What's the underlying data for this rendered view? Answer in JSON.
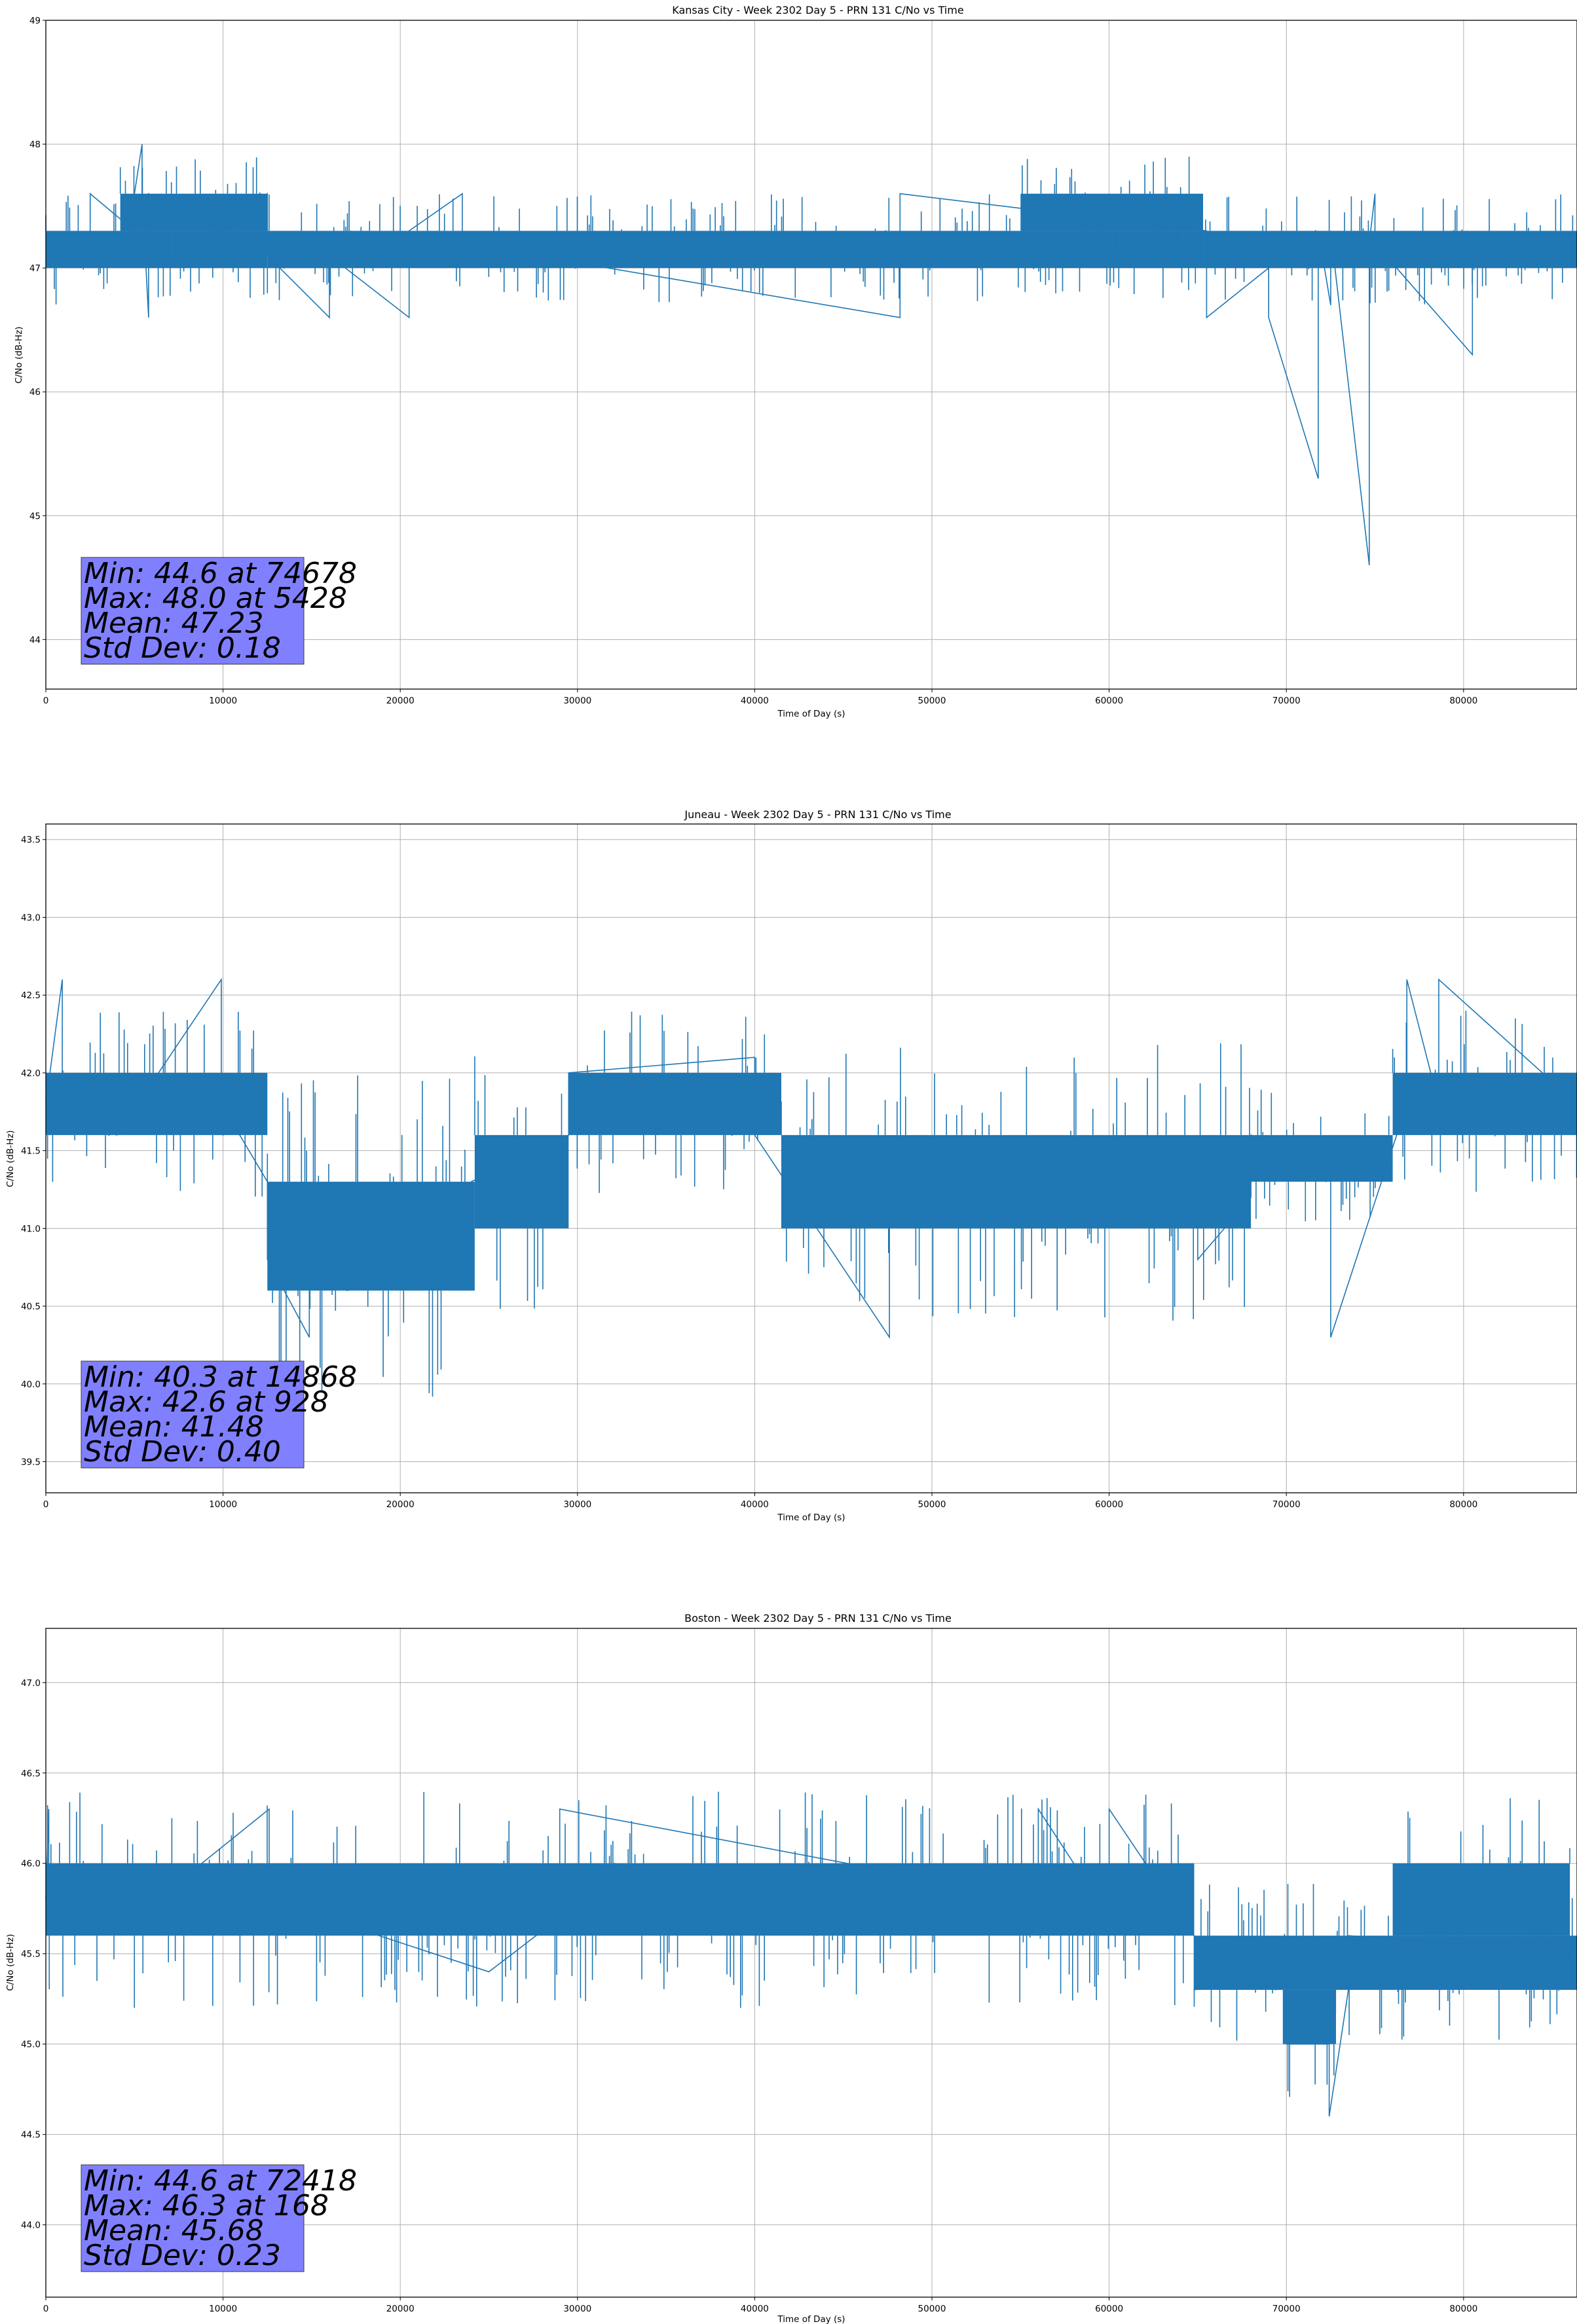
{
  "chart_data": [
    {
      "type": "line",
      "title": "Kansas City - Week 2302 Day 5 - PRN 131 C/No vs Time",
      "xlabel": "Time of Day (s)",
      "ylabel": "C/No (dB-Hz)",
      "xlim": [
        0,
        86400
      ],
      "ylim": [
        43.6,
        49.0
      ],
      "xticks": [
        0,
        10000,
        20000,
        30000,
        40000,
        50000,
        60000,
        70000,
        80000
      ],
      "yticks": [
        44,
        45,
        46,
        47,
        48,
        49
      ],
      "ytick_labels": [
        "44",
        "45",
        "46",
        "47",
        "48",
        "49"
      ],
      "grid": true,
      "series_color": "#1f77b4",
      "series": [
        {
          "x": [
            0,
            2500,
            2500,
            5000,
            5000,
            5428,
            5428,
            5800,
            5800,
            10000,
            12500,
            12500,
            16000,
            16000,
            20500,
            20500,
            23500,
            23500,
            48200,
            48200,
            65500,
            65500,
            69000,
            69000,
            71800,
            71800,
            72500,
            72500,
            74678,
            74678,
            75000,
            75000,
            80500,
            80500,
            86400
          ],
          "y": [
            47.0,
            47.3,
            47.6,
            47.3,
            47.6,
            48.0,
            47.6,
            46.6,
            47.6,
            47.3,
            47.6,
            47.1,
            46.6,
            47.1,
            46.6,
            47.3,
            47.6,
            47.2,
            46.6,
            47.6,
            47.3,
            46.6,
            47.0,
            46.6,
            45.3,
            47.3,
            46.7,
            47.3,
            44.6,
            47.2,
            47.6,
            47.2,
            46.3,
            47.2,
            47.1
          ]
        }
      ],
      "bands": [
        {
          "x0": 0,
          "x1": 12500,
          "lo": 47.0,
          "hi": 47.3
        },
        {
          "x0": 4200,
          "x1": 12500,
          "lo": 47.3,
          "hi": 47.6
        },
        {
          "x0": 12500,
          "x1": 65500,
          "lo": 47.0,
          "hi": 47.3
        },
        {
          "x0": 65500,
          "x1": 86400,
          "lo": 47.0,
          "hi": 47.3
        },
        {
          "x0": 55000,
          "x1": 65300,
          "lo": 47.3,
          "hi": 47.6
        }
      ],
      "stats": {
        "min": "Min: 44.6 at 74678",
        "max": "Max: 48.0 at 5428",
        "mean": "Mean: 47.23",
        "std": "Std Dev: 0.18"
      }
    },
    {
      "type": "line",
      "title": "Juneau - Week 2302 Day 5 - PRN 131 C/No vs Time",
      "xlabel": "Time of Day (s)",
      "ylabel": "C/No (dB-Hz)",
      "xlim": [
        0,
        86400
      ],
      "ylim": [
        39.3,
        43.6
      ],
      "xticks": [
        0,
        10000,
        20000,
        30000,
        40000,
        50000,
        60000,
        70000,
        80000
      ],
      "yticks": [
        39.5,
        40.0,
        40.5,
        41.0,
        41.5,
        42.0,
        42.5,
        43.0,
        43.5
      ],
      "ytick_labels": [
        "39.5",
        "40.0",
        "40.5",
        "41.0",
        "41.5",
        "42.0",
        "42.5",
        "43.0",
        "43.5"
      ],
      "grid": true,
      "series_color": "#1f77b4",
      "series": [
        {
          "x": [
            0,
            928,
            928,
            4000,
            9900,
            9900,
            12500,
            12500,
            14868,
            14868,
            17000,
            24000,
            24000,
            29500,
            29500,
            40000,
            40000,
            47600,
            47600,
            55000,
            58000,
            65000,
            65000,
            68000,
            68000,
            72500,
            72500,
            76800,
            76800,
            78600,
            78600,
            86400
          ],
          "y": [
            41.8,
            42.6,
            41.8,
            41.6,
            42.6,
            41.8,
            41.3,
            40.8,
            40.3,
            40.8,
            40.6,
            40.8,
            41.3,
            41.6,
            42.0,
            42.1,
            41.6,
            40.3,
            41.3,
            41.4,
            41.2,
            41.1,
            40.8,
            41.2,
            41.6,
            41.4,
            40.3,
            41.8,
            42.6,
            41.8,
            42.6,
            41.8
          ]
        }
      ],
      "bands": [
        {
          "x0": 0,
          "x1": 12500,
          "lo": 41.6,
          "hi": 42.0
        },
        {
          "x0": 12500,
          "x1": 24200,
          "lo": 40.6,
          "hi": 41.3
        },
        {
          "x0": 24200,
          "x1": 29500,
          "lo": 41.0,
          "hi": 41.6
        },
        {
          "x0": 29500,
          "x1": 41500,
          "lo": 41.6,
          "hi": 42.0
        },
        {
          "x0": 41500,
          "x1": 68000,
          "lo": 41.0,
          "hi": 41.6
        },
        {
          "x0": 68000,
          "x1": 76000,
          "lo": 41.3,
          "hi": 41.6
        },
        {
          "x0": 76000,
          "x1": 86400,
          "lo": 41.6,
          "hi": 42.0
        }
      ],
      "stats": {
        "min": "Min: 40.3 at 14868",
        "max": "Max: 42.6 at 928",
        "mean": "Mean: 41.48",
        "std": "Std Dev: 0.40"
      }
    },
    {
      "type": "line",
      "title": "Boston - Week 2302 Day 5 - PRN 131 C/No vs Time",
      "xlabel": "Time of Day (s)",
      "ylabel": "C/No (dB-Hz)",
      "xlim": [
        0,
        86400
      ],
      "ylim": [
        43.6,
        47.3
      ],
      "xticks": [
        0,
        10000,
        20000,
        30000,
        40000,
        50000,
        60000,
        70000,
        80000
      ],
      "yticks": [
        44.0,
        44.5,
        45.0,
        45.5,
        46.0,
        46.5,
        47.0
      ],
      "ytick_labels": [
        "44.0",
        "44.5",
        "45.0",
        "45.5",
        "46.0",
        "46.5",
        "47.0"
      ],
      "grid": true,
      "series_color": "#1f77b4",
      "series": [
        {
          "x": [
            0,
            168,
            168,
            5000,
            12600,
            12600,
            25000,
            29000,
            29000,
            56000,
            56000,
            60000,
            60000,
            64800,
            64800,
            70000,
            70000,
            72418,
            72418,
            73500,
            73500,
            86400
          ],
          "y": [
            45.8,
            46.3,
            45.8,
            45.7,
            46.3,
            45.8,
            45.4,
            45.7,
            46.3,
            45.8,
            46.3,
            45.7,
            46.3,
            45.6,
            45.3,
            45.4,
            45.0,
            45.0,
            44.6,
            45.3,
            45.6,
            45.5
          ]
        }
      ],
      "bands": [
        {
          "x0": 0,
          "x1": 64800,
          "lo": 45.6,
          "hi": 46.0
        },
        {
          "x0": 64800,
          "x1": 86400,
          "lo": 45.3,
          "hi": 45.6
        },
        {
          "x0": 69800,
          "x1": 72800,
          "lo": 45.0,
          "hi": 45.3
        },
        {
          "x0": 76000,
          "x1": 86000,
          "lo": 45.6,
          "hi": 46.0
        }
      ],
      "stats": {
        "min": "Min: 44.6 at 72418",
        "max": "Max: 46.3 at 168",
        "mean": "Mean: 45.68",
        "std": "Std Dev: 0.23"
      }
    }
  ]
}
